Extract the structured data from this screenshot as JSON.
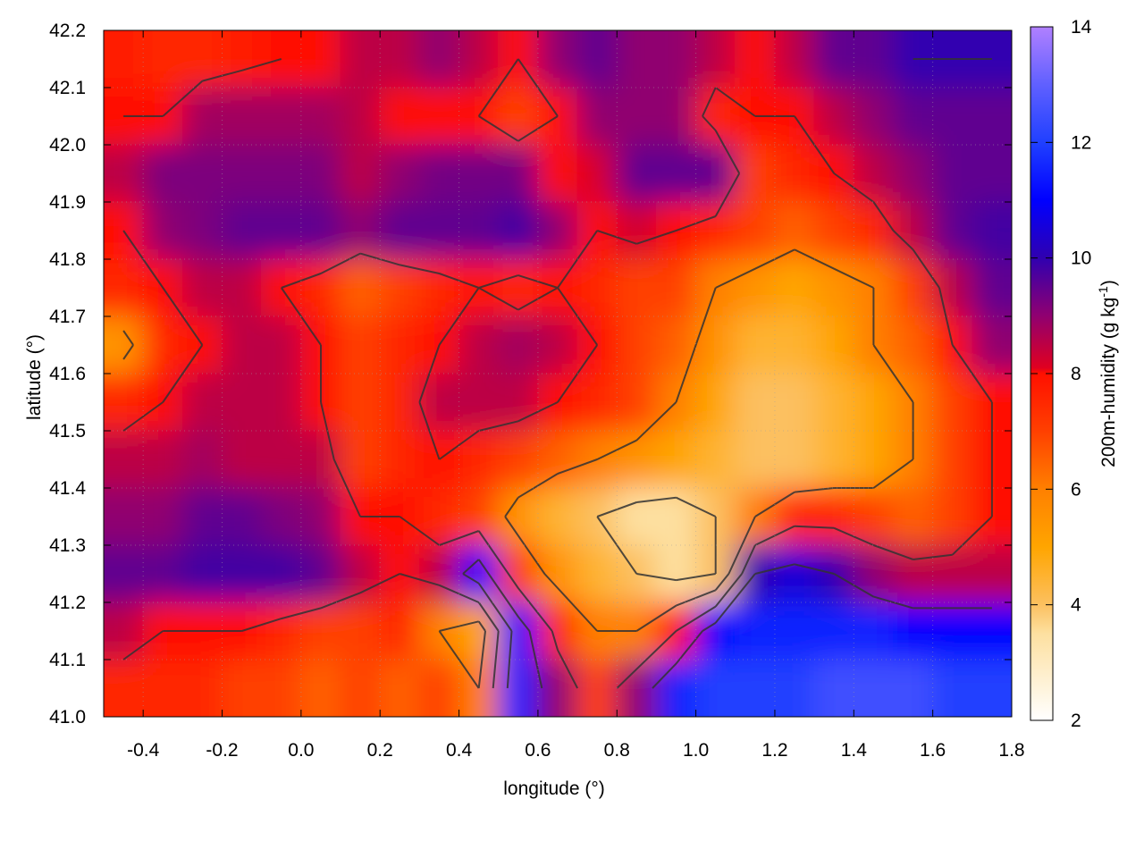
{
  "chart_data": {
    "type": "heatmap",
    "title": "",
    "xlabel": "longitude (°)",
    "ylabel": "latitude (°)",
    "colorbar_label": "200m-humidity (g kg",
    "colorbar_label_sup": "-1",
    "colorbar_label_end": ")",
    "xlim": [
      -0.5,
      1.8
    ],
    "ylim": [
      41.0,
      42.2
    ],
    "clim": [
      2,
      14
    ],
    "x_ticks": [
      "-0.4",
      "-0.2",
      "0.0",
      "0.2",
      "0.4",
      "0.6",
      "0.8",
      "1.0",
      "1.2",
      "1.4",
      "1.6",
      "1.8"
    ],
    "y_ticks": [
      "41.0",
      "41.1",
      "41.2",
      "41.3",
      "41.4",
      "41.5",
      "41.6",
      "41.7",
      "41.8",
      "41.9",
      "42.0",
      "42.1",
      "42.2"
    ],
    "c_ticks": [
      "2",
      "4",
      "6",
      "8",
      "10",
      "12",
      "14"
    ],
    "x_centers": [
      -0.45,
      -0.35,
      -0.25,
      -0.15,
      -0.05,
      0.05,
      0.15,
      0.25,
      0.35,
      0.45,
      0.55,
      0.65,
      0.75,
      0.85,
      0.95,
      1.05,
      1.15,
      1.25,
      1.35,
      1.45,
      1.55,
      1.65,
      1.75
    ],
    "y_centers": [
      42.15,
      42.05,
      41.95,
      41.85,
      41.75,
      41.65,
      41.55,
      41.45,
      41.35,
      41.25,
      41.15,
      41.05
    ],
    "values": [
      [
        7.8,
        7.5,
        7.5,
        7.8,
        8,
        8,
        8.5,
        8.5,
        9,
        8.5,
        8,
        9,
        9.5,
        9,
        9,
        8.5,
        8,
        8.5,
        9.5,
        9.5,
        10,
        10,
        10
      ],
      [
        8,
        8,
        8.8,
        8.8,
        8.8,
        8.8,
        8.5,
        8,
        8,
        8,
        7,
        8,
        9,
        9,
        9,
        7.5,
        8,
        8,
        8.5,
        9,
        9.5,
        9.5,
        9.5
      ],
      [
        8.5,
        9.2,
        9.2,
        9.2,
        9.2,
        9.2,
        8.5,
        9,
        9.3,
        9.3,
        9.3,
        8,
        8.2,
        9.5,
        9.5,
        9.5,
        7,
        7.5,
        8,
        8.5,
        9,
        9.5,
        9.5
      ],
      [
        8,
        9,
        9.2,
        9.5,
        9.5,
        9.5,
        9,
        9.5,
        9.5,
        9.5,
        9.8,
        9,
        8,
        8.3,
        8,
        7.5,
        7,
        6.5,
        7,
        7.5,
        8.5,
        9.5,
        9.8
      ],
      [
        7.5,
        8,
        8.5,
        8.5,
        8,
        7.5,
        6.5,
        7,
        7.5,
        8,
        7.5,
        8,
        7.5,
        7,
        7,
        6,
        5.5,
        5,
        5.5,
        6,
        7,
        8.5,
        9.5
      ],
      [
        5.5,
        7.5,
        8,
        8.5,
        8.5,
        8,
        7,
        7.5,
        8,
        8.5,
        8.8,
        8.5,
        8,
        7,
        6.5,
        5.5,
        4.5,
        4.5,
        5,
        6,
        6.5,
        8,
        9
      ],
      [
        7.5,
        8,
        8.5,
        8.5,
        8.5,
        8,
        7,
        7.5,
        8.5,
        8.5,
        8.5,
        8,
        7.5,
        7,
        6,
        5,
        4,
        4,
        4.5,
        5,
        6,
        7,
        8
      ],
      [
        8.5,
        8.5,
        8.8,
        8.5,
        8.5,
        8.5,
        7,
        7.5,
        8,
        7.5,
        7,
        6.5,
        6,
        5.5,
        5,
        4.5,
        4,
        4,
        4.5,
        5,
        6,
        7,
        8
      ],
      [
        9,
        9,
        9.5,
        9.5,
        9.2,
        9,
        8,
        8,
        7.5,
        7,
        5.5,
        4.5,
        4,
        3.5,
        3.5,
        4,
        6,
        7.5,
        7.5,
        7,
        6.5,
        7,
        8
      ],
      [
        9.5,
        9.5,
        9.8,
        9.8,
        9.8,
        9.5,
        8.5,
        8,
        8.5,
        11,
        7,
        5.5,
        4.5,
        4,
        3.5,
        4,
        10,
        10.5,
        10,
        9,
        8.5,
        8.5,
        8.5
      ],
      [
        8.5,
        8,
        8,
        8,
        7.5,
        7,
        7,
        7.5,
        6,
        5,
        11,
        7.5,
        6,
        6,
        8,
        11,
        11.5,
        11.5,
        11.5,
        11.5,
        11,
        11,
        11
      ],
      [
        7.5,
        7.5,
        7.5,
        7,
        7,
        6.5,
        7,
        6.5,
        7,
        6,
        11.5,
        9,
        7,
        9,
        11.5,
        12,
        12,
        12,
        12.5,
        12.5,
        12.5,
        12,
        12
      ]
    ],
    "palette": {
      "2": "#ffffff",
      "3.5": "#fde0a0",
      "4": "#fcc060",
      "5": "#ffa500",
      "6": "#ff8000",
      "7": "#ff4000",
      "8": "#ff1000",
      "8.1": "#e00020",
      "9": "#900070",
      "10": "#3000b0",
      "11": "#0000ff",
      "12": "#2040ff",
      "13": "#6060ff",
      "14": "#b080ff"
    },
    "grid": true,
    "contours": true
  }
}
